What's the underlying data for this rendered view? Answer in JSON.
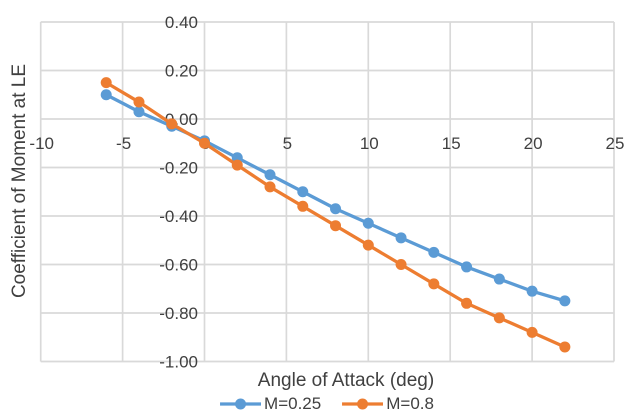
{
  "chart_data": {
    "type": "line",
    "title": "",
    "xlabel": "Angle of Attack (deg)",
    "ylabel": "Coefficient of Moment at LE",
    "x": [
      -6,
      -4,
      -2,
      0,
      2,
      4,
      6,
      8,
      10,
      12,
      14,
      16,
      18,
      20,
      22
    ],
    "series": [
      {
        "name": "M=0.25",
        "color": "#5B9BD5",
        "marker": "circle",
        "values": [
          0.1,
          0.03,
          -0.03,
          -0.09,
          -0.16,
          -0.23,
          -0.3,
          -0.37,
          -0.43,
          -0.49,
          -0.55,
          -0.61,
          -0.66,
          -0.71,
          -0.75
        ]
      },
      {
        "name": "M=0.8",
        "color": "#ED7D31",
        "marker": "circle",
        "values": [
          0.15,
          0.07,
          -0.02,
          -0.1,
          -0.19,
          -0.28,
          -0.36,
          -0.44,
          -0.52,
          -0.6,
          -0.68,
          -0.76,
          -0.82,
          -0.88,
          -0.94
        ]
      }
    ],
    "xlim": [
      -10,
      25
    ],
    "ylim": [
      -1.0,
      0.4
    ],
    "x_ticks": [
      -10,
      -5,
      0,
      5,
      10,
      15,
      20,
      25
    ],
    "x_tick_labels": [
      "-10",
      "-5",
      "0",
      "5",
      "10",
      "15",
      "20",
      "25"
    ],
    "y_ticks": [
      0.4,
      0.2,
      0.0,
      -0.2,
      -0.4,
      -0.6,
      -0.8,
      -1.0
    ],
    "y_tick_labels": [
      "0.40",
      "0.20",
      "0.00",
      "-0.20",
      "-0.40",
      "-0.60",
      "-0.80",
      "-1.00"
    ],
    "grid": true,
    "legend_position": "bottom",
    "colors": {
      "grid": "#D9D9D9",
      "text": "#404040",
      "background": "#FFFFFF"
    }
  }
}
